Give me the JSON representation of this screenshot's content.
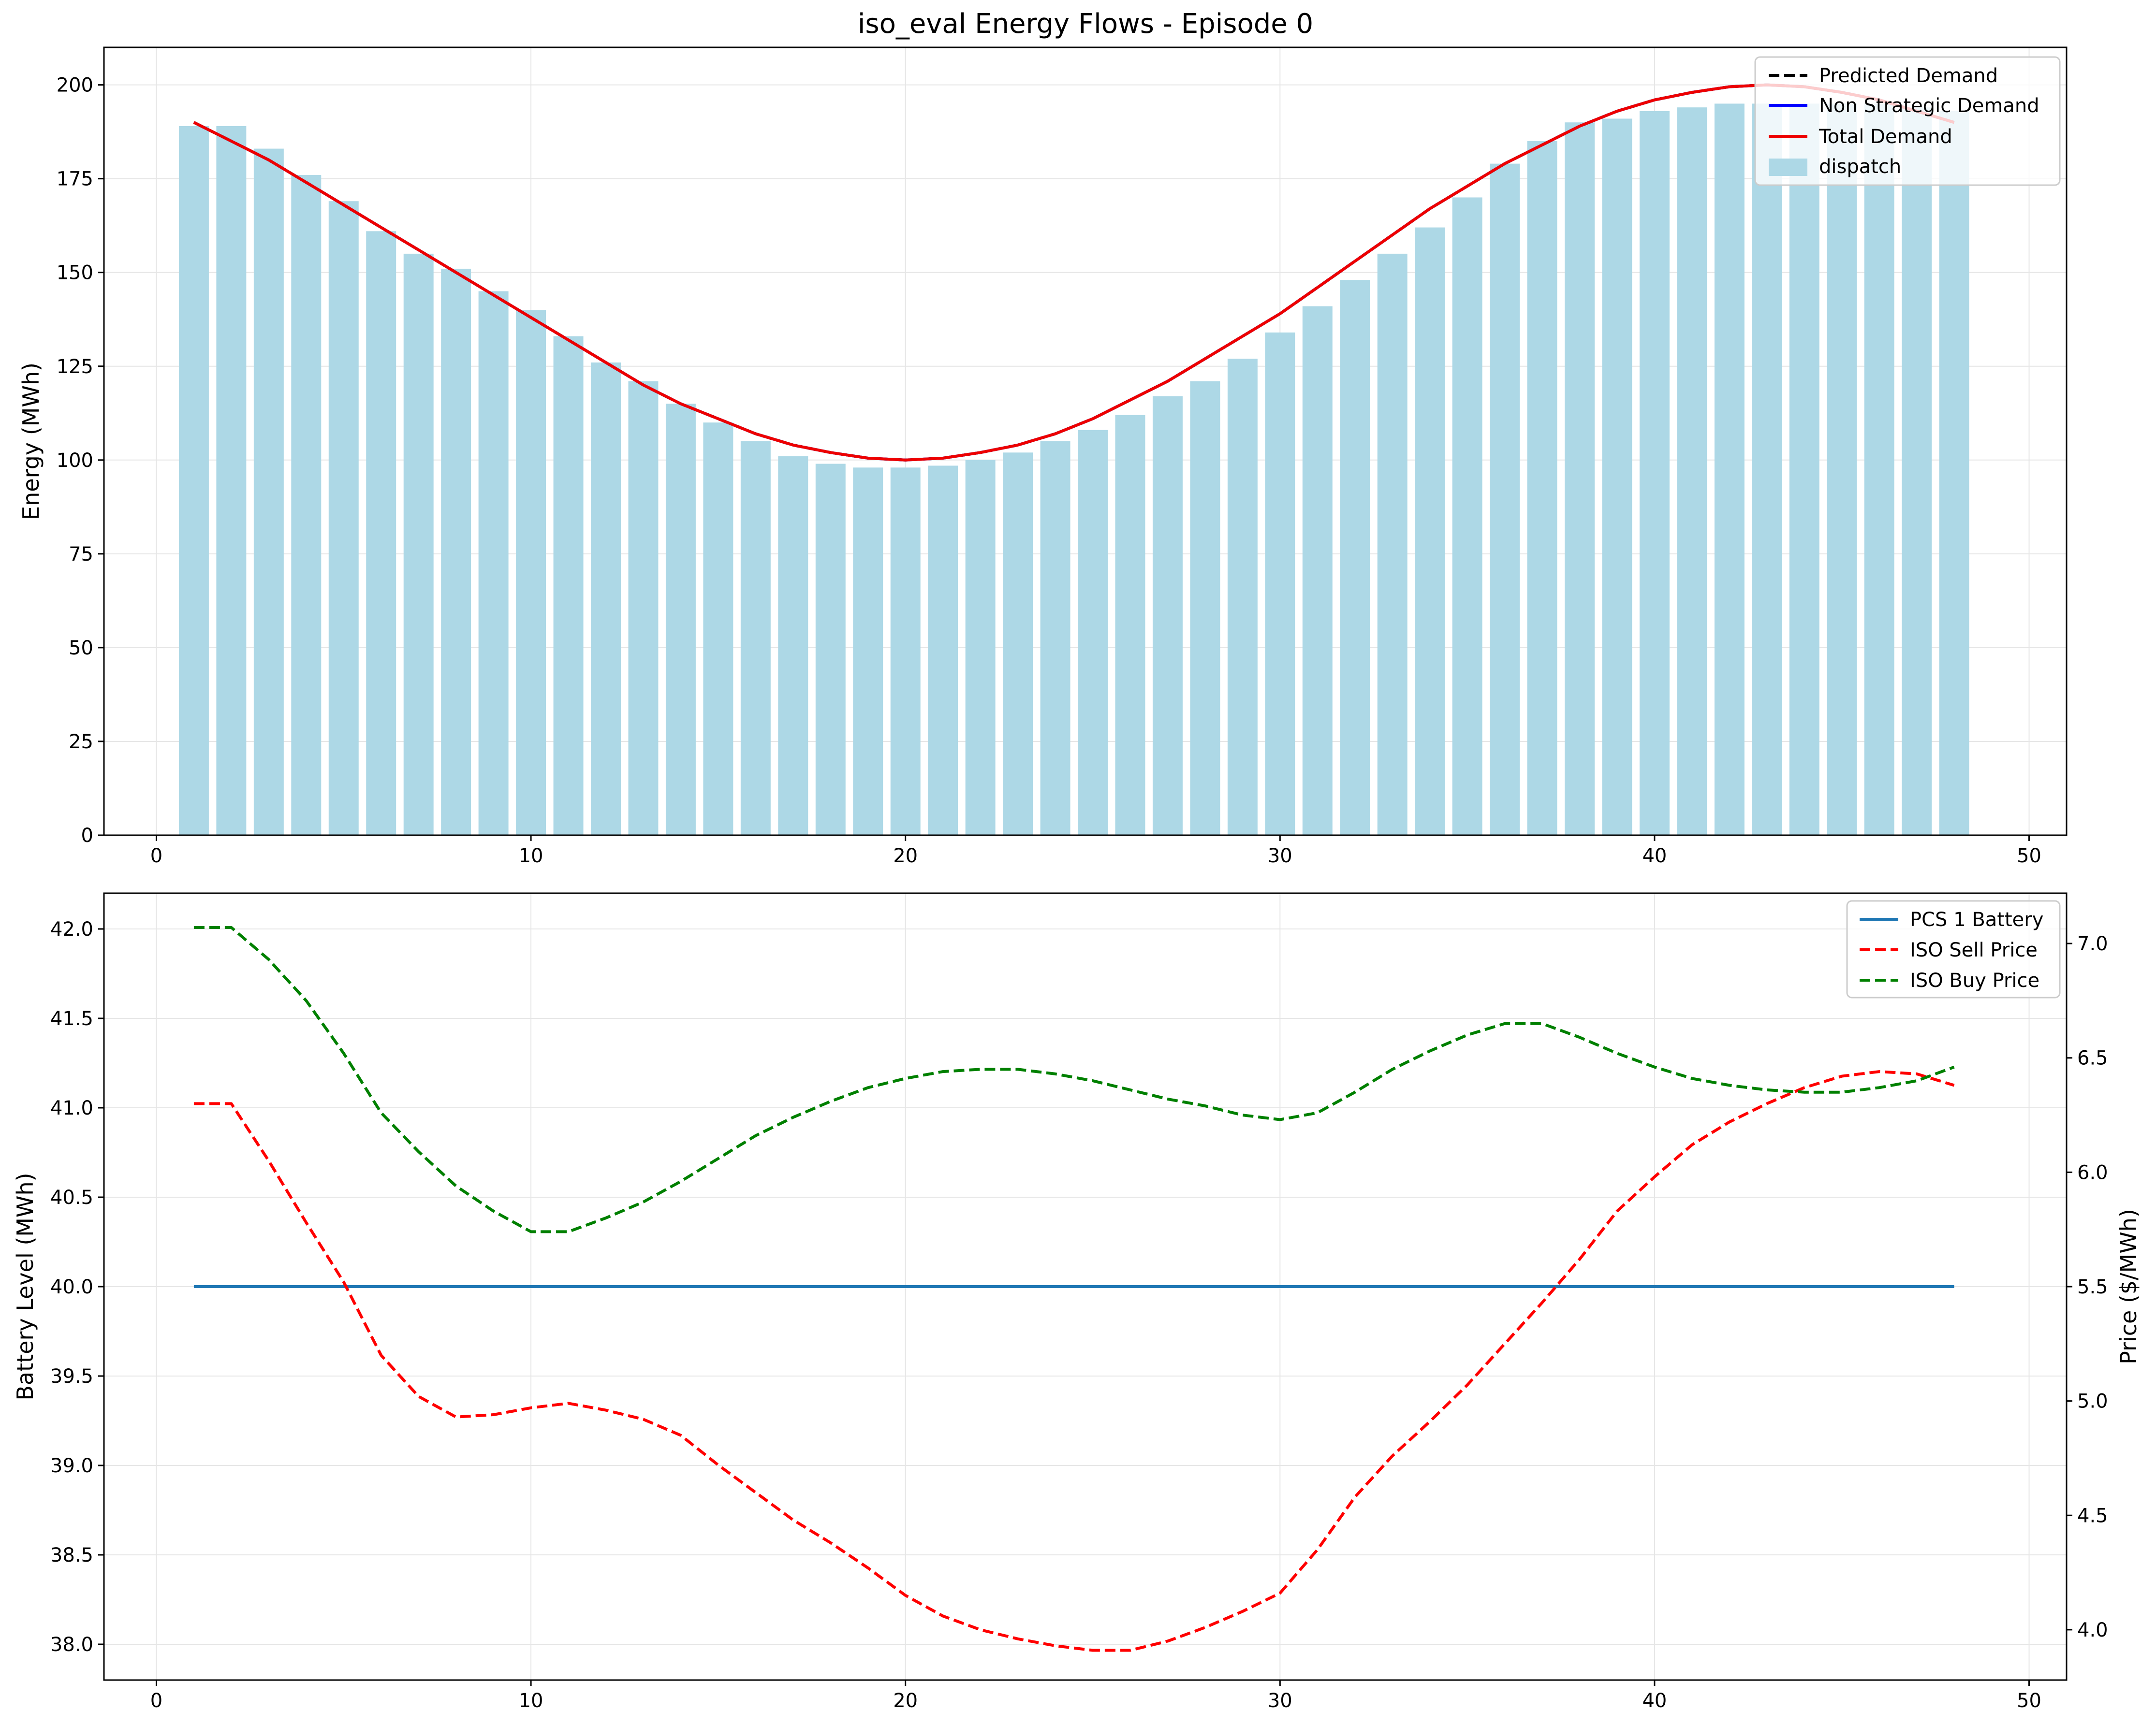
{
  "chart_data": [
    {
      "type": "bar",
      "title": "iso_eval Energy Flows - Episode 0",
      "xlabel": "",
      "ylabel": "Energy (MWh)",
      "xlim": [
        -1.4,
        51
      ],
      "ylim": [
        0,
        210
      ],
      "xticks": [
        0,
        10,
        20,
        30,
        40,
        50
      ],
      "yticks": [
        0,
        25,
        50,
        75,
        100,
        125,
        150,
        175,
        200
      ],
      "grid": true,
      "legend_position": "upper right",
      "x": [
        1,
        2,
        3,
        4,
        5,
        6,
        7,
        8,
        9,
        10,
        11,
        12,
        13,
        14,
        15,
        16,
        17,
        18,
        19,
        20,
        21,
        22,
        23,
        24,
        25,
        26,
        27,
        28,
        29,
        30,
        31,
        32,
        33,
        34,
        35,
        36,
        37,
        38,
        39,
        40,
        41,
        42,
        43,
        44,
        45,
        46,
        47,
        48
      ],
      "series": [
        {
          "name": "Predicted Demand",
          "kind": "line",
          "style": "dashed",
          "color": "#000000",
          "values": [
            190,
            185,
            180,
            174,
            168,
            162,
            156,
            150,
            144,
            138,
            132,
            126,
            120,
            115,
            111,
            107,
            104,
            102,
            100.5,
            100,
            100.5,
            102,
            104,
            107,
            111,
            116,
            121,
            127,
            133,
            139,
            146,
            153,
            160,
            167,
            173,
            179,
            184,
            189,
            193,
            196,
            198,
            199.5,
            200,
            199.5,
            198,
            196,
            193,
            190
          ]
        },
        {
          "name": "Non Strategic Demand",
          "kind": "line",
          "style": "solid",
          "color": "#0000ff",
          "values": [
            190,
            185,
            180,
            174,
            168,
            162,
            156,
            150,
            144,
            138,
            132,
            126,
            120,
            115,
            111,
            107,
            104,
            102,
            100.5,
            100,
            100.5,
            102,
            104,
            107,
            111,
            116,
            121,
            127,
            133,
            139,
            146,
            153,
            160,
            167,
            173,
            179,
            184,
            189,
            193,
            196,
            198,
            199.5,
            200,
            199.5,
            198,
            196,
            193,
            190
          ]
        },
        {
          "name": "Total Demand",
          "kind": "line",
          "style": "solid",
          "color": "#ee0000",
          "values": [
            190,
            185,
            180,
            174,
            168,
            162,
            156,
            150,
            144,
            138,
            132,
            126,
            120,
            115,
            111,
            107,
            104,
            102,
            100.5,
            100,
            100.5,
            102,
            104,
            107,
            111,
            116,
            121,
            127,
            133,
            139,
            146,
            153,
            160,
            167,
            173,
            179,
            184,
            189,
            193,
            196,
            198,
            199.5,
            200,
            199.5,
            198,
            196,
            193,
            190
          ]
        },
        {
          "name": "dispatch",
          "kind": "bar",
          "color": "#add8e6",
          "values": [
            189,
            189,
            183,
            176,
            169,
            161,
            155,
            151,
            145,
            140,
            133,
            126,
            121,
            115,
            110,
            105,
            101,
            99,
            98,
            98,
            98.5,
            100,
            102,
            105,
            108,
            112,
            117,
            121,
            127,
            134,
            141,
            148,
            155,
            162,
            170,
            179,
            185,
            190,
            191,
            193,
            194,
            195,
            195,
            195,
            195,
            195,
            194,
            193
          ]
        }
      ]
    },
    {
      "type": "line",
      "title": "",
      "xlabel": "",
      "ylabel": "Battery Level (MWh)",
      "y2label": "Price ($/MWh)",
      "xlim": [
        -1.4,
        51
      ],
      "ylim": [
        37.8,
        42.2
      ],
      "y2lim": [
        3.78,
        7.22
      ],
      "xticks": [
        0,
        10,
        20,
        30,
        40,
        50
      ],
      "yticks": [
        38.0,
        38.5,
        39.0,
        39.5,
        40.0,
        40.5,
        41.0,
        41.5,
        42.0
      ],
      "y2ticks": [
        4.0,
        4.5,
        5.0,
        5.5,
        6.0,
        6.5,
        7.0
      ],
      "grid": true,
      "legend_position": "upper right",
      "x": [
        1,
        2,
        3,
        4,
        5,
        6,
        7,
        8,
        9,
        10,
        11,
        12,
        13,
        14,
        15,
        16,
        17,
        18,
        19,
        20,
        21,
        22,
        23,
        24,
        25,
        26,
        27,
        28,
        29,
        30,
        31,
        32,
        33,
        34,
        35,
        36,
        37,
        38,
        39,
        40,
        41,
        42,
        43,
        44,
        45,
        46,
        47,
        48
      ],
      "series": [
        {
          "name": "PCS 1 Battery",
          "axis": "left",
          "style": "solid",
          "color": "#1f77b4",
          "values": [
            40,
            40,
            40,
            40,
            40,
            40,
            40,
            40,
            40,
            40,
            40,
            40,
            40,
            40,
            40,
            40,
            40,
            40,
            40,
            40,
            40,
            40,
            40,
            40,
            40,
            40,
            40,
            40,
            40,
            40,
            40,
            40,
            40,
            40,
            40,
            40,
            40,
            40,
            40,
            40,
            40,
            40,
            40,
            40,
            40,
            40,
            40,
            40
          ]
        },
        {
          "name": "ISO Sell Price",
          "axis": "right",
          "style": "dashed",
          "color": "#ff0000",
          "values": [
            6.3,
            6.3,
            6.05,
            5.78,
            5.52,
            5.2,
            5.02,
            4.93,
            4.94,
            4.97,
            4.99,
            4.96,
            4.92,
            4.85,
            4.72,
            4.6,
            4.48,
            4.38,
            4.27,
            4.15,
            4.06,
            4.0,
            3.96,
            3.93,
            3.91,
            3.91,
            3.95,
            4.01,
            4.08,
            4.16,
            4.35,
            4.58,
            4.76,
            4.91,
            5.07,
            5.25,
            5.43,
            5.62,
            5.83,
            5.98,
            6.12,
            6.22,
            6.3,
            6.37,
            6.42,
            6.44,
            6.43,
            6.38
          ]
        },
        {
          "name": "ISO Buy Price",
          "axis": "right",
          "style": "dashed",
          "color": "#008000",
          "values": [
            7.07,
            7.07,
            6.93,
            6.75,
            6.52,
            6.26,
            6.09,
            5.94,
            5.83,
            5.74,
            5.74,
            5.8,
            5.87,
            5.96,
            6.06,
            6.16,
            6.24,
            6.31,
            6.37,
            6.41,
            6.44,
            6.45,
            6.45,
            6.43,
            6.4,
            6.36,
            6.32,
            6.29,
            6.25,
            6.23,
            6.26,
            6.35,
            6.45,
            6.53,
            6.6,
            6.65,
            6.65,
            6.59,
            6.52,
            6.46,
            6.41,
            6.38,
            6.36,
            6.35,
            6.35,
            6.37,
            6.4,
            6.46
          ]
        }
      ]
    }
  ]
}
